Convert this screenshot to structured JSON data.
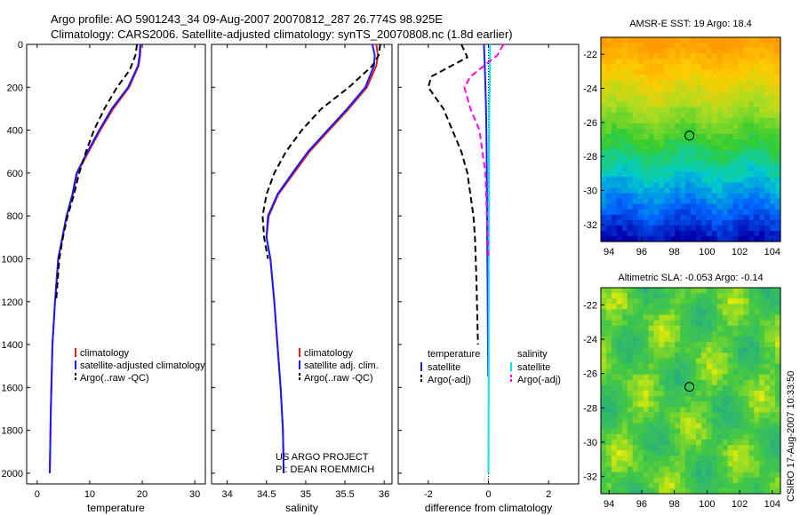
{
  "title_line1": "Argo profile: AO 5901243_34 09-Aug-2007 20070812_287 26.774S 98.925E",
  "title_line2": "Climatology: CARS2006. Satellite-adjusted climatology: synTS_20070808.nc (1.8d earlier)",
  "footer_text": "CSIRO 17-Aug-2007 10:33:50",
  "colors": {
    "climatology": "#e02020",
    "satellite": "#1a1aff",
    "argo": "#000000",
    "satellite_sal": "#00e5ee",
    "argo_sal": "#ff00ff"
  },
  "chart_data": [
    {
      "type": "line",
      "xlabel": "temperature",
      "ylabel": "",
      "xlim": [
        -2,
        32
      ],
      "ylim": [
        0,
        2050
      ],
      "xticks": [
        0,
        10,
        20,
        30
      ],
      "yticks": [
        0,
        200,
        400,
        600,
        800,
        1000,
        1200,
        1400,
        1600,
        1800,
        2000
      ],
      "legend": {
        "placement": "lower-right",
        "entries": [
          "climatology",
          "satellite-adjusted climatology",
          "Argo(..raw -QC)"
        ]
      },
      "series": [
        {
          "name": "climatology",
          "color": "#e02020",
          "style": "solid",
          "x": [
            19.7,
            19.6,
            19.3,
            17.5,
            14.5,
            12.0,
            9.8,
            7.6,
            6.8,
            5.6,
            4.8,
            4.0,
            3.4,
            2.9,
            2.6,
            2.4
          ],
          "y": [
            0,
            50,
            100,
            200,
            300,
            400,
            500,
            600,
            700,
            800,
            900,
            1000,
            1200,
            1400,
            1700,
            2000
          ]
        },
        {
          "name": "satellite-adjusted climatology",
          "color": "#1a1aff",
          "style": "solid",
          "x": [
            19.6,
            19.5,
            19.2,
            17.3,
            14.2,
            11.8,
            9.6,
            7.5,
            6.7,
            5.6,
            4.8,
            4.0,
            3.4,
            2.9,
            2.6,
            2.4
          ],
          "y": [
            0,
            50,
            100,
            200,
            300,
            400,
            500,
            600,
            700,
            800,
            900,
            1000,
            1200,
            1400,
            1700,
            2000
          ]
        },
        {
          "name": "Argo(..raw -QC)",
          "color": "#000000",
          "style": "dashed",
          "x": [
            19.0,
            18.7,
            17.6,
            15.2,
            12.8,
            10.8,
            9.3,
            8.0,
            7.0,
            5.8,
            4.9,
            4.2,
            3.6
          ],
          "y": [
            0,
            50,
            120,
            200,
            300,
            400,
            500,
            600,
            700,
            800,
            900,
            1000,
            1200
          ]
        }
      ]
    },
    {
      "type": "line",
      "xlabel": "salinity",
      "xlim": [
        33.8,
        36.1
      ],
      "ylim": [
        0,
        2050
      ],
      "xticks": [
        34,
        34.5,
        35,
        35.5,
        36
      ],
      "legend": {
        "placement": "lower-right",
        "entries": [
          "climatology",
          "satellite adj. clim.",
          "Argo(..raw -QC)"
        ]
      },
      "annotations": [
        "US ARGO PROJECT",
        "PI: DEAN ROEMMICH"
      ],
      "series": [
        {
          "name": "climatology",
          "color": "#e02020",
          "style": "solid",
          "x": [
            35.9,
            35.92,
            35.9,
            35.78,
            35.55,
            35.3,
            35.05,
            34.85,
            34.65,
            34.53,
            34.5,
            34.55,
            34.6,
            34.64,
            34.68,
            34.71,
            34.72
          ],
          "y": [
            0,
            50,
            100,
            200,
            300,
            400,
            500,
            600,
            700,
            800,
            900,
            1000,
            1200,
            1400,
            1600,
            1800,
            2000
          ]
        },
        {
          "name": "satellite adj. clim.",
          "color": "#1a1aff",
          "style": "solid",
          "x": [
            35.85,
            35.88,
            35.87,
            35.76,
            35.53,
            35.28,
            35.03,
            34.83,
            34.64,
            34.52,
            34.5,
            34.55,
            34.6,
            34.64,
            34.68,
            34.71,
            34.72
          ],
          "y": [
            0,
            50,
            100,
            200,
            300,
            400,
            500,
            600,
            700,
            800,
            900,
            1000,
            1200,
            1400,
            1600,
            1800,
            2000
          ]
        },
        {
          "name": "Argo(..raw -QC)",
          "color": "#000000",
          "style": "dashed",
          "x": [
            35.95,
            35.93,
            35.85,
            35.55,
            35.2,
            34.95,
            34.75,
            34.6,
            34.5,
            34.45,
            34.47,
            34.52
          ],
          "y": [
            0,
            50,
            100,
            200,
            300,
            400,
            500,
            600,
            700,
            800,
            900,
            1000
          ]
        }
      ]
    },
    {
      "type": "line",
      "xlabel": "difference from climatology",
      "xlim": [
        -3,
        3
      ],
      "ylim": [
        0,
        2050
      ],
      "xticks": [
        -2,
        0,
        2
      ],
      "legend": {
        "placement": "lower-center",
        "entries": [
          "temperature",
          "satellite",
          "Argo(-adj)",
          "salinity",
          "satellite",
          "Argo(-adj)"
        ]
      },
      "series": [
        {
          "name": "satellite",
          "color": "#1a1aff",
          "style": "solid",
          "x": [
            -0.15,
            -0.12,
            -0.1,
            -0.08,
            -0.06,
            -0.05,
            -0.04,
            -0.03,
            -0.02,
            -0.01
          ],
          "y": [
            0,
            100,
            200,
            300,
            500,
            700,
            900,
            1100,
            1300,
            1550
          ]
        },
        {
          "name": "Argo(-adj)",
          "color": "#000000",
          "style": "dashed",
          "x": [
            -0.9,
            -0.7,
            -1.9,
            -2.0,
            -1.5,
            -1.2,
            -0.9,
            -0.7,
            -0.6,
            -0.5,
            -0.45,
            -0.4,
            -0.35
          ],
          "y": [
            0,
            60,
            150,
            200,
            300,
            400,
            500,
            600,
            700,
            800,
            900,
            1100,
            1400
          ]
        },
        {
          "name": "satellite",
          "color": "#00e5ee",
          "style": "solid",
          "x": [
            0.05,
            0.05,
            0.04,
            0.03,
            0.02,
            0.02,
            0.01,
            0.01,
            0.0
          ],
          "y": [
            0,
            100,
            200,
            300,
            500,
            700,
            1000,
            1500,
            2000
          ]
        },
        {
          "name": "Argo(-adj)",
          "color": "#ff00ff",
          "style": "dashed",
          "x": [
            0.5,
            0.3,
            -0.6,
            -0.8,
            -0.6,
            -0.3,
            -0.2,
            -0.1,
            -0.05,
            0.0
          ],
          "y": [
            0,
            50,
            150,
            200,
            300,
            400,
            500,
            600,
            800,
            1000
          ]
        }
      ]
    },
    {
      "type": "heatmap",
      "title": "AMSR-E SST: 19 Argo: 18.4",
      "xlim": [
        93.5,
        104.5
      ],
      "ylim": [
        -33,
        -21
      ],
      "xticks": [
        94,
        96,
        98,
        100,
        102,
        104
      ],
      "yticks": [
        -22,
        -24,
        -26,
        -28,
        -30,
        -32
      ],
      "marker": {
        "x": 98.925,
        "y": -26.774
      },
      "colors_by_latitude": [
        "#ff9900",
        "#ffcc00",
        "#aadd22",
        "#33cc33",
        "#00cccc",
        "#0066ff",
        "#0000aa"
      ]
    },
    {
      "type": "heatmap",
      "title": "Altimetric SLA: -0.053 Argo: -0.14",
      "xlim": [
        93.5,
        104.5
      ],
      "ylim": [
        -33,
        -21
      ],
      "xticks": [
        94,
        96,
        98,
        100,
        102,
        104
      ],
      "yticks": [
        -22,
        -24,
        -26,
        -28,
        -30,
        -32
      ],
      "marker": {
        "x": 98.925,
        "y": -26.774
      },
      "base_color": "#44c844"
    }
  ]
}
